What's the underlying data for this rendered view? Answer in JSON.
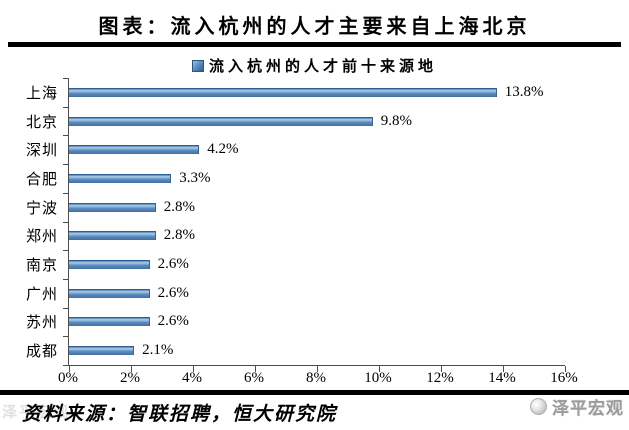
{
  "header": {
    "title": "图表：流入杭州的人才主要来自上海北京"
  },
  "chart_data": {
    "type": "bar",
    "orientation": "horizontal",
    "title": "图表：流入杭州的人才主要来自上海北京",
    "legend": "流入杭州的人才前十来源地",
    "legend_position": "top",
    "categories": [
      "上海",
      "北京",
      "深圳",
      "合肥",
      "宁波",
      "郑州",
      "南京",
      "广州",
      "苏州",
      "成都"
    ],
    "values": [
      13.8,
      9.8,
      4.2,
      3.3,
      2.8,
      2.8,
      2.6,
      2.6,
      2.6,
      2.1
    ],
    "value_labels": [
      "13.8%",
      "9.8%",
      "4.2%",
      "3.3%",
      "2.8%",
      "2.8%",
      "2.6%",
      "2.6%",
      "2.6%",
      "2.1%"
    ],
    "x_ticks": [
      "0%",
      "2%",
      "4%",
      "6%",
      "8%",
      "10%",
      "12%",
      "14%",
      "16%"
    ],
    "xlim": [
      0,
      16
    ],
    "grid": false,
    "bar_color": "#4f81bd"
  },
  "footer": {
    "source": "资料来源：智联招聘，恒大研究院",
    "watermark": "泽平宏观"
  }
}
